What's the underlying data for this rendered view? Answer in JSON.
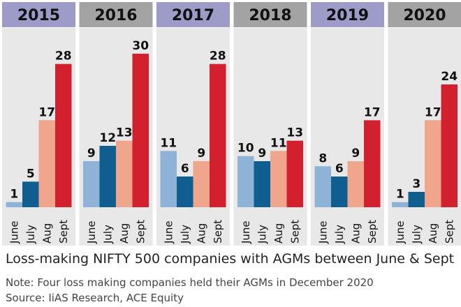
{
  "chart_data": {
    "type": "bar",
    "panels": [
      {
        "year": "2015",
        "values": [
          1,
          5,
          17,
          28
        ]
      },
      {
        "year": "2016",
        "values": [
          9,
          12,
          13,
          30
        ]
      },
      {
        "year": "2017",
        "values": [
          11,
          6,
          9,
          28
        ]
      },
      {
        "year": "2018",
        "values": [
          10,
          9,
          11,
          13
        ]
      },
      {
        "year": "2019",
        "values": [
          8,
          6,
          9,
          17
        ]
      },
      {
        "year": "2020",
        "values": [
          1,
          3,
          17,
          24
        ]
      }
    ],
    "categories": [
      "June",
      "July",
      "Aug",
      "Sept"
    ],
    "ylim": [
      0,
      30
    ],
    "colors": {
      "bars": [
        "#8fb3d6",
        "#105d90",
        "#f0a58d",
        "#d3202f"
      ],
      "panel_header_odd": "#9d9cc9",
      "panel_header_even": "#a3a3a3",
      "panel_background": "#e8e8e8"
    },
    "title": "Loss-making NIFTY 500 companies with AGMs between June & Sept"
  },
  "footer": {
    "note": "Note: Four loss making companies held their AGMs in December 2020",
    "source": "Source: IiAS Research, ACE Equity"
  }
}
